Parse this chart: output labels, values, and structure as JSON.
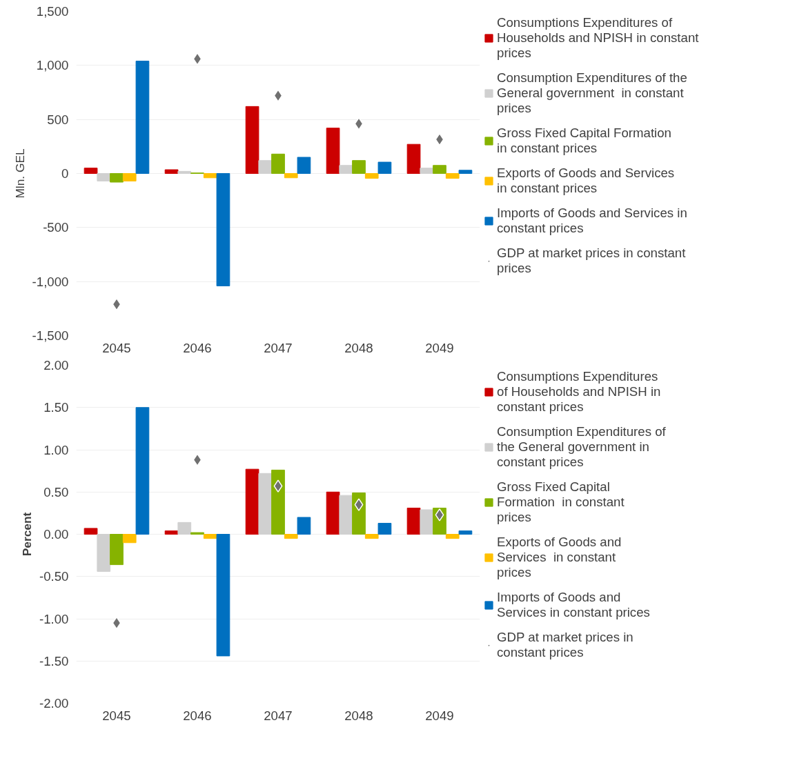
{
  "chart_data": [
    {
      "type": "bar",
      "ylabel": "Mln. GEL",
      "categories": [
        "2045",
        "2046",
        "2047",
        "2048",
        "2049"
      ],
      "ylim": [
        -1500,
        1500
      ],
      "yticks": [
        {
          "value": -1500,
          "label": "-1,500"
        },
        {
          "value": -1000,
          "label": "-1,000"
        },
        -500,
        0,
        500,
        {
          "value": 1000,
          "label": "1,000"
        },
        {
          "value": 1500,
          "label": "1,500"
        }
      ],
      "grid": "y",
      "legend": "right",
      "series": [
        {
          "name": "Consumptions Expenditures of Households and NPISH in constant prices",
          "color": "#cc0000",
          "values": [
            50,
            35,
            620,
            420,
            270
          ]
        },
        {
          "name": "Consumption Expenditures of the General government  in constant prices",
          "color": "#d0d0d0",
          "values": [
            -70,
            20,
            120,
            75,
            50
          ]
        },
        {
          "name": "Gross Fixed Capital Formation  in constant prices",
          "color": "#86b300",
          "values": [
            -80,
            5,
            180,
            120,
            75
          ]
        },
        {
          "name": "Exports of Goods and Services  in constant prices",
          "color": "#ffc000",
          "values": [
            -70,
            -40,
            -40,
            -45,
            -45
          ]
        },
        {
          "name": "Imports of Goods and Services in constant prices",
          "color": "#0070c0",
          "values": [
            1040,
            -1040,
            150,
            105,
            30
          ]
        },
        {
          "name": "GDP at market prices in constant prices",
          "type": "scatter",
          "marker": "diamond",
          "color": "#707070",
          "values": [
            -1210,
            1060,
            720,
            460,
            315
          ]
        }
      ]
    },
    {
      "type": "bar",
      "ylabel": "Percent",
      "categories": [
        "2045",
        "2046",
        "2047",
        "2048",
        "2049"
      ],
      "ylim": [
        -2,
        2
      ],
      "yticks": [
        {
          "value": -2,
          "label": "-2.00"
        },
        {
          "value": -1.5,
          "label": "-1.50"
        },
        {
          "value": -1,
          "label": "-1.00"
        },
        {
          "value": -0.5,
          "label": "-0.50"
        },
        {
          "value": 0,
          "label": "0.00"
        },
        {
          "value": 0.5,
          "label": "0.50"
        },
        {
          "value": 1,
          "label": "1.00"
        },
        {
          "value": 1.5,
          "label": "1.50"
        },
        {
          "value": 2,
          "label": "2.00"
        }
      ],
      "grid": "y",
      "legend": "right",
      "series": [
        {
          "name": "Consumptions Expenditures of Households and NPISH in constant prices",
          "color": "#cc0000",
          "values": [
            0.07,
            0.04,
            0.77,
            0.5,
            0.31
          ]
        },
        {
          "name": "Consumption Expenditures of the General government in constant prices",
          "color": "#d0d0d0",
          "values": [
            -0.44,
            0.14,
            0.72,
            0.46,
            0.29
          ]
        },
        {
          "name": "Gross Fixed Capital Formation  in constant prices",
          "color": "#86b300",
          "values": [
            -0.36,
            0.02,
            0.76,
            0.49,
            0.31
          ]
        },
        {
          "name": "Exports of Goods and Services  in constant prices",
          "color": "#ffc000",
          "values": [
            -0.1,
            -0.05,
            -0.05,
            -0.05,
            -0.05
          ]
        },
        {
          "name": "Imports of Goods and Services in constant prices",
          "color": "#0070c0",
          "values": [
            1.5,
            -1.44,
            0.2,
            0.13,
            0.04
          ]
        },
        {
          "name": "GDP at market prices in constant prices",
          "type": "scatter",
          "marker": "diamond",
          "color": "#707070",
          "values": [
            -1.05,
            0.88,
            0.57,
            0.35,
            0.23
          ]
        }
      ]
    }
  ]
}
